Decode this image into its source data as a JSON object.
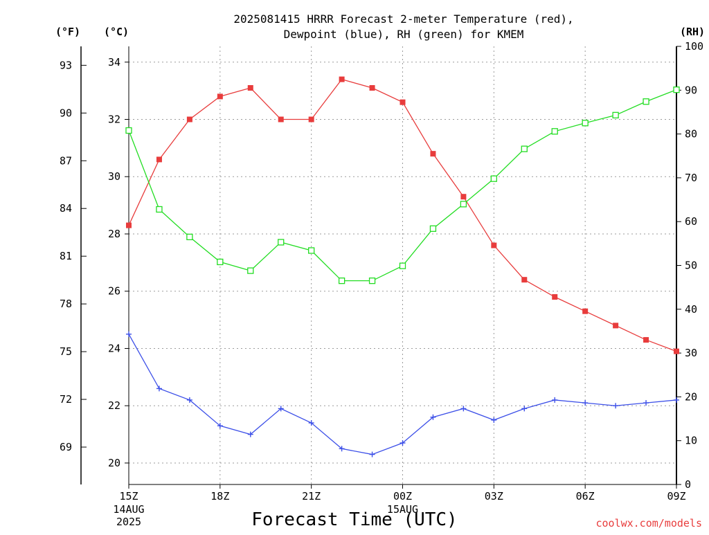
{
  "chart_data": {
    "type": "line",
    "title_lines": [
      "2025081415 HRRR Forecast 2-meter Temperature (red),",
      "Dewpoint (blue), RH (green) for KMEM"
    ],
    "units": {
      "fahrenheit": "(°F)",
      "celsius": "(°C)",
      "rh": "(RH)"
    },
    "xlabel": "Forecast Time (UTC)",
    "credit": "coolwx.com/models",
    "x": [
      "15Z",
      "16Z",
      "17Z",
      "18Z",
      "19Z",
      "20Z",
      "21Z",
      "22Z",
      "23Z",
      "00Z",
      "01Z",
      "02Z",
      "03Z",
      "04Z",
      "05Z",
      "06Z",
      "07Z",
      "08Z",
      "09Z"
    ],
    "x_ticks": [
      {
        "label": "15Z",
        "sub": [
          "14AUG",
          "2025"
        ],
        "index": 0
      },
      {
        "label": "18Z",
        "sub": [],
        "index": 3
      },
      {
        "label": "21Z",
        "sub": [],
        "index": 6
      },
      {
        "label": "00Z",
        "sub": [
          "15AUG"
        ],
        "index": 9
      },
      {
        "label": "03Z",
        "sub": [],
        "index": 12
      },
      {
        "label": "06Z",
        "sub": [],
        "index": 15
      },
      {
        "label": "09Z",
        "sub": [],
        "index": 18
      }
    ],
    "celsius_axis": {
      "ylim": [
        19.25,
        34.55
      ],
      "ticks": [
        20,
        22,
        24,
        26,
        28,
        30,
        32,
        34
      ]
    },
    "fahrenheit_axis": {
      "ylim": [
        66.65,
        94.19
      ],
      "ticks": [
        69,
        72,
        75,
        78,
        81,
        84,
        87,
        90,
        93
      ]
    },
    "rh_axis": {
      "ylim": [
        0,
        100
      ],
      "ticks": [
        0,
        10,
        20,
        30,
        40,
        50,
        60,
        70,
        80,
        90,
        100
      ]
    },
    "grid": true,
    "series": [
      {
        "name": "Temperature",
        "axis": "celsius",
        "color": "#e83c3c",
        "marker": "filled-square",
        "values": [
          28.3,
          30.6,
          32.0,
          32.8,
          33.1,
          32.0,
          32.0,
          33.4,
          33.1,
          32.6,
          30.8,
          29.3,
          27.6,
          26.4,
          25.8,
          25.3,
          24.8,
          24.3,
          23.9
        ]
      },
      {
        "name": "Dewpoint",
        "axis": "celsius",
        "color": "#3c4fe8",
        "marker": "plus",
        "values": [
          24.5,
          22.6,
          22.2,
          21.3,
          21.0,
          21.9,
          21.4,
          20.5,
          20.3,
          20.7,
          21.6,
          21.9,
          21.5,
          21.9,
          22.2,
          22.1,
          22.0,
          22.1,
          22.2
        ]
      },
      {
        "name": "RH",
        "axis": "rh",
        "color": "#22dd22",
        "marker": "open-square",
        "values": [
          80.8,
          62.8,
          56.5,
          50.8,
          48.8,
          55.3,
          53.4,
          46.5,
          46.5,
          49.9,
          58.4,
          64.0,
          69.8,
          76.6,
          80.6,
          82.5,
          84.3,
          87.4,
          90.1
        ]
      }
    ]
  }
}
